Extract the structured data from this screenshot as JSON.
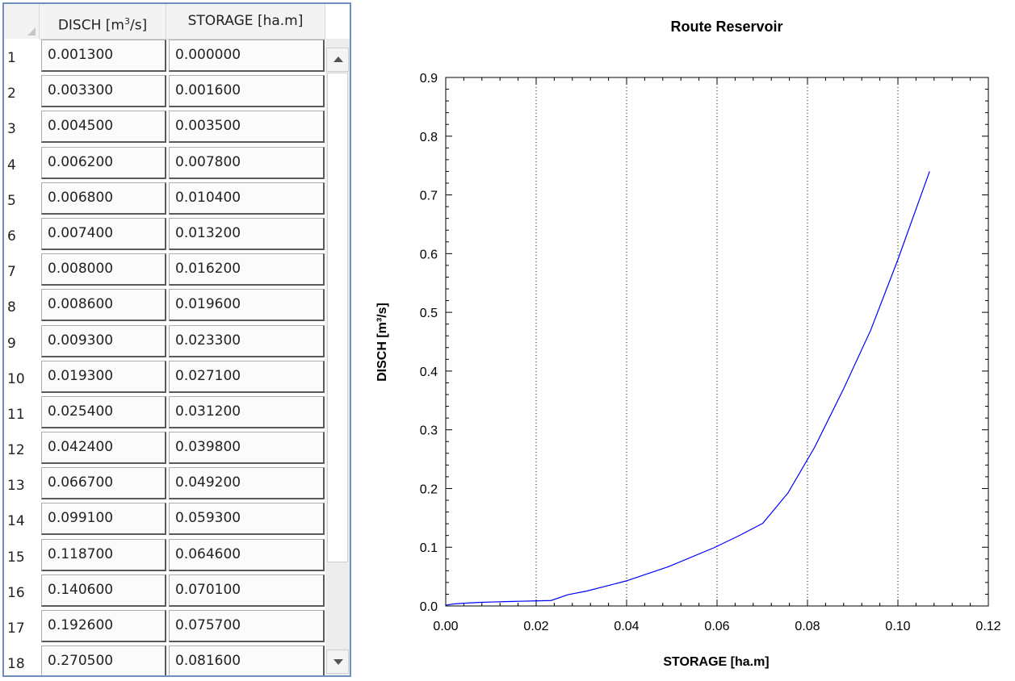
{
  "grid": {
    "col1_header": "DISCH [m",
    "col1_header_sup": "3",
    "col1_header_tail": "/s]",
    "col2_header": "STORAGE [ha.m]",
    "rows": [
      {
        "num": "1",
        "disch": "0.001300",
        "storage": "0.000000"
      },
      {
        "num": "2",
        "disch": "0.003300",
        "storage": "0.001600"
      },
      {
        "num": "3",
        "disch": "0.004500",
        "storage": "0.003500"
      },
      {
        "num": "4",
        "disch": "0.006200",
        "storage": "0.007800"
      },
      {
        "num": "5",
        "disch": "0.006800",
        "storage": "0.010400"
      },
      {
        "num": "6",
        "disch": "0.007400",
        "storage": "0.013200"
      },
      {
        "num": "7",
        "disch": "0.008000",
        "storage": "0.016200"
      },
      {
        "num": "8",
        "disch": "0.008600",
        "storage": "0.019600"
      },
      {
        "num": "9",
        "disch": "0.009300",
        "storage": "0.023300"
      },
      {
        "num": "10",
        "disch": "0.019300",
        "storage": "0.027100"
      },
      {
        "num": "11",
        "disch": "0.025400",
        "storage": "0.031200"
      },
      {
        "num": "12",
        "disch": "0.042400",
        "storage": "0.039800"
      },
      {
        "num": "13",
        "disch": "0.066700",
        "storage": "0.049200"
      },
      {
        "num": "14",
        "disch": "0.099100",
        "storage": "0.059300"
      },
      {
        "num": "15",
        "disch": "0.118700",
        "storage": "0.064600"
      },
      {
        "num": "16",
        "disch": "0.140600",
        "storage": "0.070100"
      },
      {
        "num": "17",
        "disch": "0.192600",
        "storage": "0.075700"
      },
      {
        "num": "18",
        "disch": "0.270500",
        "storage": "0.081600"
      }
    ]
  },
  "chart_data": {
    "type": "line",
    "title": "Route Reservoir",
    "xlabel": "STORAGE [ha.m]",
    "ylabel": "DISCH [m³/s]",
    "xlim": [
      0,
      0.12
    ],
    "ylim": [
      0,
      0.9
    ],
    "xticks": [
      "0.00",
      "0.02",
      "0.04",
      "0.06",
      "0.08",
      "0.10",
      "0.12"
    ],
    "yticks": [
      "0.0",
      "0.1",
      "0.2",
      "0.3",
      "0.4",
      "0.5",
      "0.6",
      "0.7",
      "0.8",
      "0.9"
    ],
    "x_grid": true,
    "y_grid": false,
    "line_color": "#0000ff",
    "series": [
      {
        "x": [
          0.0,
          0.0016,
          0.0035,
          0.0078,
          0.0104,
          0.0132,
          0.0162,
          0.0196,
          0.0233,
          0.0271,
          0.0312,
          0.0398,
          0.0492,
          0.0593,
          0.0646,
          0.0701,
          0.0757,
          0.0816,
          0.088,
          0.094,
          0.1,
          0.107
        ],
        "y": [
          0.0013,
          0.0033,
          0.0045,
          0.0062,
          0.0068,
          0.0074,
          0.008,
          0.0086,
          0.0093,
          0.0193,
          0.0254,
          0.0424,
          0.0667,
          0.0991,
          0.1187,
          0.1406,
          0.1926,
          0.2705,
          0.37,
          0.47,
          0.59,
          0.74
        ]
      }
    ]
  }
}
